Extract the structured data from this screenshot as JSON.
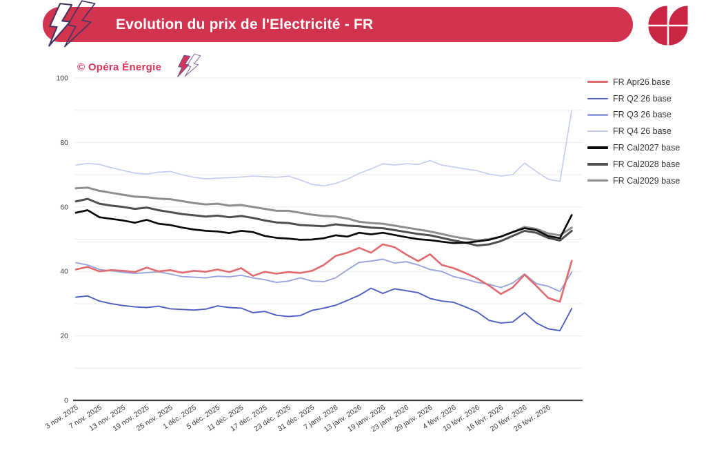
{
  "header": {
    "title": "Evolution du prix de l'Electricité - FR",
    "banner_color": "#d2344f",
    "logo_color": "#c92545",
    "bolt_outline_color": "#44325e"
  },
  "watermark": {
    "text": "© Opéra Énergie",
    "color": "#d6365a"
  },
  "chart_data": {
    "type": "line",
    "title": "Evolution du prix de l'Electricité - FR",
    "xlabel": "",
    "ylabel": "",
    "ylim": [
      0,
      100
    ],
    "y_ticks": [
      0,
      20,
      40,
      60,
      80,
      100
    ],
    "grid": "horizontal every 10, light gray",
    "legend_position": "right",
    "points_per_label_interval": 2,
    "x_tick_labels": [
      "3 nov. 2025",
      "7 nov. 2025",
      "13 nov. 2025",
      "19 nov. 2025",
      "25 nov. 2025",
      "1 déc. 2025",
      "5 déc. 2025",
      "11 déc. 2025",
      "17 déc. 2025",
      "23 déc. 2025",
      "31 déc. 2025",
      "7 janv. 2026",
      "13 janv. 2026",
      "19 janv. 2026",
      "23 janv. 2026",
      "29 janv. 2026",
      "4 févr. 2026",
      "10 févr. 2026",
      "16 févr. 2026",
      "20 févr. 2026",
      "26 févr. 2026"
    ],
    "series": [
      {
        "name": "FR Apr26 base",
        "color": "#e06a6e",
        "width": 2.6,
        "values": [
          40.6,
          41.4,
          40.0,
          40.4,
          40.2,
          39.8,
          41.2,
          40.0,
          40.4,
          39.6,
          40.2,
          39.9,
          40.6,
          39.8,
          41.0,
          38.6,
          39.9,
          39.3,
          39.8,
          39.5,
          40.2,
          42.0,
          44.8,
          45.8,
          47.3,
          45.8,
          48.4,
          47.5,
          45.2,
          43.2,
          45.3,
          42.0,
          41.0,
          39.5,
          37.8,
          35.6,
          33.0,
          35.0,
          39.0,
          35.5,
          31.8,
          30.6,
          43.3
        ]
      },
      {
        "name": "FR Q2 26 base",
        "color": "#4d5ec0",
        "width": 1.9,
        "values": [
          32.0,
          32.4,
          30.8,
          30.0,
          29.4,
          29.0,
          28.8,
          29.2,
          28.4,
          28.2,
          28.0,
          28.3,
          29.3,
          28.8,
          28.6,
          27.2,
          27.6,
          26.4,
          26.0,
          26.3,
          27.9,
          28.6,
          29.5,
          31.0,
          32.6,
          34.8,
          33.2,
          34.6,
          34.0,
          33.4,
          31.6,
          30.8,
          30.4,
          29.0,
          27.4,
          24.8,
          24.0,
          24.3,
          27.2,
          24.0,
          22.2,
          21.6,
          28.5
        ]
      },
      {
        "name": "FR Q3 26 base",
        "color": "#98a4dd",
        "width": 1.9,
        "values": [
          42.7,
          42.0,
          40.6,
          40.2,
          39.7,
          39.4,
          39.6,
          39.9,
          39.2,
          38.4,
          38.2,
          38.0,
          38.5,
          38.3,
          38.8,
          38.0,
          37.4,
          36.6,
          37.0,
          38.0,
          37.0,
          36.8,
          38.0,
          40.5,
          42.8,
          43.2,
          43.8,
          42.6,
          43.0,
          42.0,
          40.6,
          40.0,
          38.4,
          37.6,
          36.6,
          36.0,
          35.0,
          36.4,
          39.2,
          36.2,
          35.4,
          33.8,
          39.8
        ]
      },
      {
        "name": "FR Q4 26 base",
        "color": "#c3cbee",
        "width": 1.6,
        "values": [
          73.0,
          73.5,
          73.2,
          72.2,
          71.3,
          70.5,
          70.2,
          70.8,
          71.0,
          70.0,
          69.2,
          68.7,
          68.9,
          69.1,
          69.3,
          69.6,
          69.4,
          69.2,
          69.6,
          68.4,
          67.0,
          66.5,
          67.3,
          68.6,
          70.4,
          71.8,
          73.4,
          73.0,
          73.4,
          73.2,
          74.4,
          73.0,
          72.4,
          71.8,
          71.2,
          70.2,
          69.6,
          70.0,
          73.6,
          71.0,
          68.6,
          67.9,
          90.0
        ]
      },
      {
        "name": "FR Cal2027 base",
        "color": "#0a0a0a",
        "width": 2.7,
        "values": [
          58.2,
          59.0,
          56.8,
          56.3,
          55.8,
          55.1,
          56.0,
          54.8,
          54.4,
          53.6,
          53.0,
          52.6,
          52.4,
          51.9,
          52.6,
          52.2,
          51.0,
          50.4,
          50.2,
          49.8,
          49.9,
          50.3,
          51.2,
          50.8,
          52.0,
          51.5,
          52.0,
          51.3,
          50.6,
          50.0,
          49.7,
          49.2,
          48.8,
          48.9,
          49.3,
          49.8,
          50.8,
          52.2,
          53.4,
          52.8,
          51.0,
          50.3,
          57.5
        ]
      },
      {
        "name": "FR Cal2028 base",
        "color": "#4f4f4f",
        "width": 3.0,
        "values": [
          61.7,
          62.5,
          61.0,
          60.4,
          60.0,
          59.4,
          59.8,
          59.0,
          58.4,
          57.8,
          57.4,
          57.0,
          57.3,
          56.8,
          57.2,
          56.6,
          55.8,
          55.2,
          55.0,
          54.4,
          54.2,
          54.0,
          54.6,
          54.2,
          54.0,
          53.6,
          53.4,
          52.8,
          52.2,
          51.6,
          51.2,
          50.4,
          49.6,
          48.9,
          48.0,
          48.4,
          49.4,
          51.0,
          52.6,
          52.0,
          50.4,
          49.6,
          52.6
        ]
      },
      {
        "name": "FR Cal2029 base",
        "color": "#8e8e8e",
        "width": 3.0,
        "values": [
          65.8,
          66.0,
          65.0,
          64.4,
          63.8,
          63.2,
          63.0,
          62.6,
          62.4,
          61.8,
          61.2,
          60.8,
          61.0,
          60.4,
          60.6,
          60.0,
          59.4,
          58.8,
          58.8,
          58.2,
          57.6,
          57.2,
          57.0,
          56.4,
          55.4,
          55.0,
          54.8,
          54.2,
          53.6,
          53.0,
          52.4,
          51.6,
          50.8,
          50.2,
          49.6,
          50.0,
          50.8,
          52.2,
          53.8,
          53.2,
          51.8,
          51.2,
          53.6
        ]
      }
    ]
  }
}
